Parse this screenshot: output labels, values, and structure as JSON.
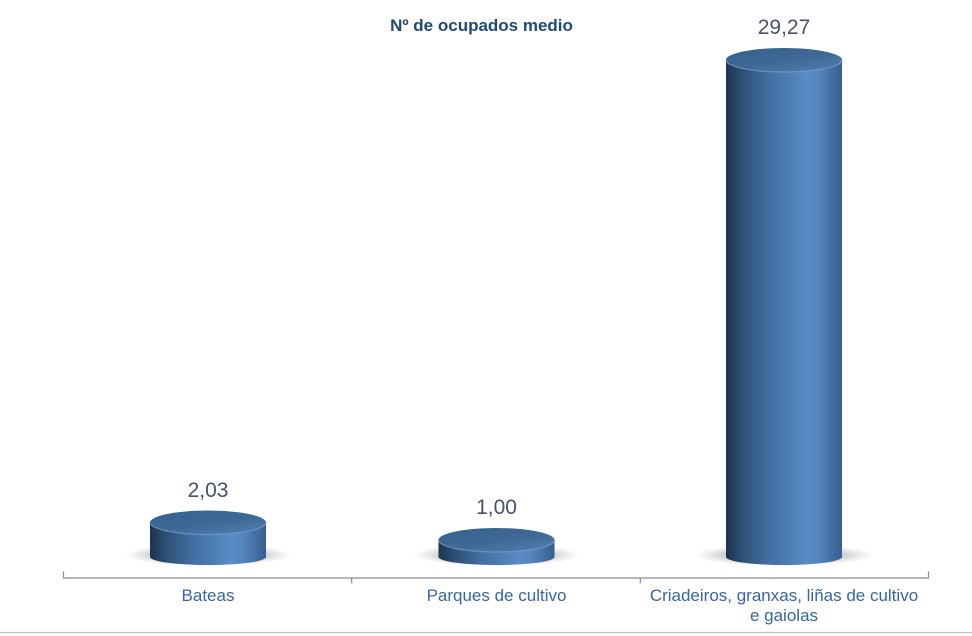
{
  "chart_data": {
    "type": "bar",
    "subtype": "3d-cylinder",
    "title": "Nº de ocupados medio",
    "categories": [
      "Bateas",
      "Parques de cultivo",
      "Criadeiros, granxas, liñas de cultivo e gaiolas"
    ],
    "values": [
      2.03,
      1.0,
      29.27
    ],
    "value_labels": [
      "2,03",
      "1,00",
      "29,27"
    ],
    "xlabel": "",
    "ylabel": "",
    "ylim": [
      0,
      29.27
    ],
    "grid": false,
    "legend": false,
    "colors": {
      "bar_fill": "#4F81BD",
      "title_text": "#1F4977",
      "value_label_text": "#44546A",
      "category_label_text": "#3766A6",
      "axis_line": "#8C8C8C",
      "bottom_border": "#BFBFBF"
    }
  }
}
